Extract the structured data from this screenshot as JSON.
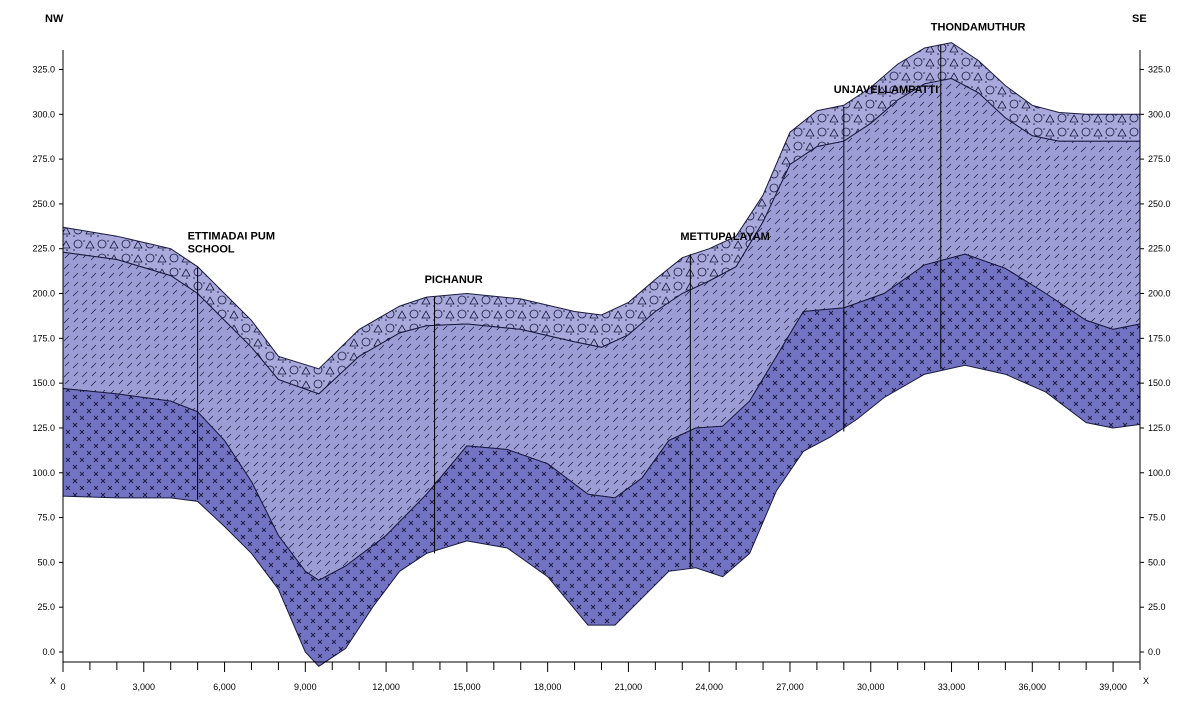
{
  "chart_data": {
    "type": "area",
    "orientation": {
      "left": "NW",
      "right": "SE"
    },
    "x_axis_end_label": "X",
    "xlim": [
      0,
      40000
    ],
    "ylim": [
      -8,
      345
    ],
    "x_ticks": [
      0,
      3000,
      6000,
      9000,
      12000,
      15000,
      18000,
      21000,
      24000,
      27000,
      30000,
      33000,
      36000,
      39000
    ],
    "x_tick_labels": [
      "0",
      "3,000",
      "6,000",
      "9,000",
      "12,000",
      "15,000",
      "18,000",
      "21,000",
      "24,000",
      "27,000",
      "30,000",
      "33,000",
      "36,000",
      "39,000"
    ],
    "y_ticks": [
      0,
      25,
      50,
      75,
      100,
      125,
      150,
      175,
      200,
      225,
      250,
      275,
      300,
      325
    ],
    "y_tick_labels": [
      "0.0",
      "25.0",
      "50.0",
      "75.0",
      "100.0",
      "125.0",
      "150.0",
      "175.0",
      "200.0",
      "225.0",
      "250.0",
      "275.0",
      "300.0",
      "325.0"
    ],
    "grid": false,
    "layers": [
      {
        "pattern": "gravel",
        "color": "#a9aadb",
        "top": [
          [
            0,
            237
          ],
          [
            2000,
            232
          ],
          [
            4000,
            225
          ],
          [
            5000,
            215
          ],
          [
            6000,
            200
          ],
          [
            7000,
            185
          ],
          [
            8000,
            165
          ],
          [
            9500,
            158
          ],
          [
            11000,
            180
          ],
          [
            12500,
            193
          ],
          [
            13500,
            198
          ],
          [
            15000,
            200
          ],
          [
            17000,
            197
          ],
          [
            19000,
            190
          ],
          [
            20000,
            188
          ],
          [
            21000,
            195
          ],
          [
            22000,
            208
          ],
          [
            23000,
            220
          ],
          [
            24000,
            225
          ],
          [
            25000,
            232
          ],
          [
            26000,
            255
          ],
          [
            27000,
            290
          ],
          [
            28000,
            302
          ],
          [
            29000,
            305
          ],
          [
            30000,
            315
          ],
          [
            31000,
            328
          ],
          [
            32000,
            337
          ],
          [
            33000,
            340
          ],
          [
            34000,
            330
          ],
          [
            35000,
            316
          ],
          [
            36000,
            305
          ],
          [
            37000,
            301
          ],
          [
            38000,
            300
          ],
          [
            39000,
            300
          ],
          [
            40000,
            300
          ]
        ],
        "bottom": [
          [
            0,
            223
          ],
          [
            2000,
            219
          ],
          [
            4000,
            210
          ],
          [
            5000,
            200
          ],
          [
            6000,
            185
          ],
          [
            7000,
            170
          ],
          [
            8000,
            152
          ],
          [
            9500,
            144
          ],
          [
            11000,
            165
          ],
          [
            12500,
            178
          ],
          [
            13500,
            182
          ],
          [
            15000,
            183
          ],
          [
            17000,
            180
          ],
          [
            19000,
            173
          ],
          [
            20000,
            170
          ],
          [
            21000,
            177
          ],
          [
            22000,
            190
          ],
          [
            23000,
            200
          ],
          [
            24000,
            207
          ],
          [
            25000,
            215
          ],
          [
            26000,
            240
          ],
          [
            27000,
            272
          ],
          [
            28000,
            282
          ],
          [
            29000,
            285
          ],
          [
            30000,
            295
          ],
          [
            31000,
            308
          ],
          [
            32000,
            317
          ],
          [
            33000,
            320
          ],
          [
            34000,
            312
          ],
          [
            35000,
            298
          ],
          [
            36000,
            288
          ],
          [
            37000,
            285
          ],
          [
            38000,
            285
          ],
          [
            39000,
            285
          ],
          [
            40000,
            285
          ]
        ]
      },
      {
        "pattern": "dashed-rock",
        "color": "#9b9dd4",
        "top": [
          [
            0,
            223
          ],
          [
            2000,
            219
          ],
          [
            4000,
            210
          ],
          [
            5000,
            200
          ],
          [
            6000,
            185
          ],
          [
            7000,
            170
          ],
          [
            8000,
            152
          ],
          [
            9500,
            144
          ],
          [
            11000,
            165
          ],
          [
            12500,
            178
          ],
          [
            13500,
            182
          ],
          [
            15000,
            183
          ],
          [
            17000,
            180
          ],
          [
            19000,
            173
          ],
          [
            20000,
            170
          ],
          [
            21000,
            177
          ],
          [
            22000,
            190
          ],
          [
            23000,
            200
          ],
          [
            24000,
            207
          ],
          [
            25000,
            215
          ],
          [
            26000,
            240
          ],
          [
            27000,
            272
          ],
          [
            28000,
            282
          ],
          [
            29000,
            285
          ],
          [
            30000,
            295
          ],
          [
            31000,
            308
          ],
          [
            32000,
            317
          ],
          [
            33000,
            320
          ],
          [
            34000,
            312
          ],
          [
            35000,
            298
          ],
          [
            36000,
            288
          ],
          [
            37000,
            285
          ],
          [
            38000,
            285
          ],
          [
            39000,
            285
          ],
          [
            40000,
            285
          ]
        ],
        "bottom": [
          [
            0,
            147
          ],
          [
            2000,
            144
          ],
          [
            4000,
            140
          ],
          [
            5000,
            134
          ],
          [
            6000,
            118
          ],
          [
            7000,
            95
          ],
          [
            8000,
            65
          ],
          [
            9000,
            45
          ],
          [
            9500,
            40
          ],
          [
            10500,
            48
          ],
          [
            12000,
            65
          ],
          [
            13500,
            88
          ],
          [
            15000,
            115
          ],
          [
            16500,
            113
          ],
          [
            18000,
            105
          ],
          [
            19500,
            88
          ],
          [
            20500,
            86
          ],
          [
            21500,
            97
          ],
          [
            22500,
            118
          ],
          [
            23500,
            125
          ],
          [
            24500,
            126
          ],
          [
            25500,
            140
          ],
          [
            26500,
            165
          ],
          [
            27500,
            190
          ],
          [
            29000,
            192
          ],
          [
            30500,
            200
          ],
          [
            32000,
            216
          ],
          [
            33500,
            222
          ],
          [
            35000,
            214
          ],
          [
            36500,
            200
          ],
          [
            38000,
            185
          ],
          [
            39000,
            180
          ],
          [
            40000,
            183
          ]
        ]
      },
      {
        "pattern": "cross",
        "color": "#7273c2",
        "top": [
          [
            0,
            147
          ],
          [
            2000,
            144
          ],
          [
            4000,
            140
          ],
          [
            5000,
            134
          ],
          [
            6000,
            118
          ],
          [
            7000,
            95
          ],
          [
            8000,
            65
          ],
          [
            9000,
            45
          ],
          [
            9500,
            40
          ],
          [
            10500,
            48
          ],
          [
            12000,
            65
          ],
          [
            13500,
            88
          ],
          [
            15000,
            115
          ],
          [
            16500,
            113
          ],
          [
            18000,
            105
          ],
          [
            19500,
            88
          ],
          [
            20500,
            86
          ],
          [
            21500,
            97
          ],
          [
            22500,
            118
          ],
          [
            23500,
            125
          ],
          [
            24500,
            126
          ],
          [
            25500,
            140
          ],
          [
            26500,
            165
          ],
          [
            27500,
            190
          ],
          [
            29000,
            192
          ],
          [
            30500,
            200
          ],
          [
            32000,
            216
          ],
          [
            33500,
            222
          ],
          [
            35000,
            214
          ],
          [
            36500,
            200
          ],
          [
            38000,
            185
          ],
          [
            39000,
            180
          ],
          [
            40000,
            183
          ]
        ],
        "bottom": [
          [
            0,
            87
          ],
          [
            2000,
            86
          ],
          [
            4000,
            86
          ],
          [
            5000,
            84
          ],
          [
            6000,
            70
          ],
          [
            7000,
            55
          ],
          [
            8000,
            35
          ],
          [
            9000,
            0
          ],
          [
            9500,
            -8
          ],
          [
            10500,
            2
          ],
          [
            11500,
            25
          ],
          [
            12500,
            45
          ],
          [
            13500,
            55
          ],
          [
            15000,
            62
          ],
          [
            16500,
            58
          ],
          [
            18000,
            42
          ],
          [
            19500,
            15
          ],
          [
            20500,
            15
          ],
          [
            21500,
            30
          ],
          [
            22500,
            45
          ],
          [
            23500,
            47
          ],
          [
            24500,
            42
          ],
          [
            25500,
            55
          ],
          [
            26500,
            90
          ],
          [
            27500,
            112
          ],
          [
            28500,
            120
          ],
          [
            29500,
            130
          ],
          [
            30500,
            142
          ],
          [
            32000,
            155
          ],
          [
            33500,
            160
          ],
          [
            35000,
            155
          ],
          [
            36500,
            145
          ],
          [
            38000,
            128
          ],
          [
            39000,
            125
          ],
          [
            40000,
            127
          ]
        ]
      }
    ],
    "wells": [
      {
        "name": "ETTIMADAI PUM SCHOOL",
        "label_lines": [
          "ETTIMADAI PUM",
          "SCHOOL"
        ],
        "x": 5000,
        "top": 215,
        "bottom": 85
      },
      {
        "name": "PICHANUR",
        "label_lines": [
          "PICHANUR"
        ],
        "x": 13800,
        "top": 198,
        "bottom": 55
      },
      {
        "name": "METTUPALAYAM",
        "label_lines": [
          "METTUPALAYAM"
        ],
        "x": 23300,
        "top": 222,
        "bottom": 47
      },
      {
        "name": "UNJAVELLAMPATTI",
        "label_lines": [
          "UNJAVELLAMPATTI"
        ],
        "x": 29000,
        "top": 304,
        "bottom": 123
      },
      {
        "name": "THONDAMUTHUR",
        "label_lines": [
          "THONDAMUTHUR"
        ],
        "x": 32600,
        "top": 339,
        "bottom": 158
      }
    ]
  }
}
